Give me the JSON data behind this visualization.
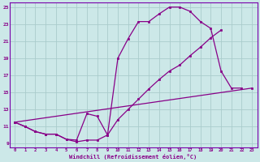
{
  "xlabel": "Windchill (Refroidissement éolien,°C)",
  "bg_color": "#cce8e8",
  "line_color": "#880088",
  "grid_color": "#aacccc",
  "spine_color": "#7700aa",
  "xlim": [
    -0.5,
    23.5
  ],
  "ylim": [
    8.5,
    25.5
  ],
  "xticks": [
    0,
    1,
    2,
    3,
    4,
    5,
    6,
    7,
    8,
    9,
    10,
    11,
    12,
    13,
    14,
    15,
    16,
    17,
    18,
    19,
    20,
    21,
    22,
    23
  ],
  "yticks": [
    9,
    11,
    13,
    15,
    17,
    19,
    21,
    23,
    25
  ],
  "line1_x": [
    0,
    1,
    2,
    3,
    4,
    5,
    6,
    7,
    8,
    9,
    10,
    11,
    12,
    13,
    14,
    15,
    16,
    17,
    18,
    19,
    20,
    21,
    22
  ],
  "line1_y": [
    11.5,
    11.0,
    10.4,
    10.1,
    10.1,
    9.5,
    9.2,
    9.4,
    9.4,
    10.0,
    19.0,
    21.3,
    23.3,
    23.3,
    24.2,
    25.0,
    25.0,
    24.5,
    23.3,
    22.5,
    17.5,
    15.5,
    15.5
  ],
  "line2_x": [
    0,
    1,
    2,
    3,
    4,
    5,
    6,
    7,
    8,
    9,
    10,
    11,
    12,
    13,
    14,
    15,
    16,
    17,
    18,
    19,
    20
  ],
  "line2_y": [
    11.5,
    11.0,
    10.4,
    10.1,
    10.1,
    9.5,
    9.4,
    12.5,
    12.2,
    10.0,
    11.8,
    13.0,
    14.2,
    15.4,
    16.5,
    17.5,
    18.2,
    19.3,
    20.3,
    21.4,
    22.3
  ],
  "line3_x": [
    0,
    23
  ],
  "line3_y": [
    11.5,
    15.5
  ]
}
